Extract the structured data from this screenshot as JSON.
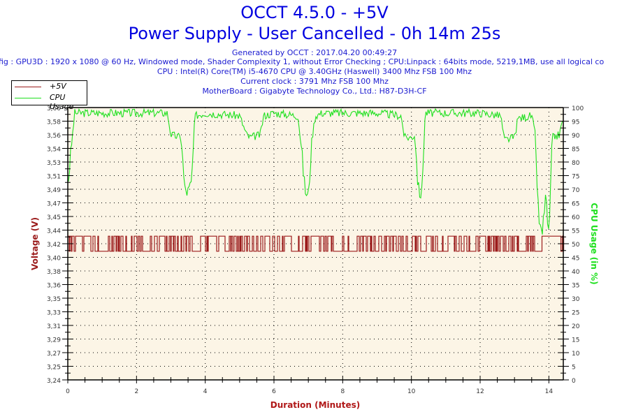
{
  "header": {
    "title": "OCCT 4.5.0 - +5V",
    "subtitle": "Power Supply - User Cancelled - 0h 14m 25s",
    "generated": "Generated by OCCT : 2017.04.20 00:49:27",
    "config": "fig : GPU3D : 1920 x 1080 @ 60 Hz, Windowed mode, Shader Complexity 1, without Error Checking ; CPU:Linpack : 64bits mode, 5219,1MB, use all logical co",
    "cpu": "CPU : Intel(R) Core(TM) i5-4670 CPU @ 3.40GHz (Haswell) 3400 Mhz FSB 100 Mhz",
    "clock": "Current clock : 3791 Mhz FSB 100 Mhz",
    "motherboard": "MotherBoard : Gigabyte Technology Co., Ltd.: H87-D3H-CF"
  },
  "legend": {
    "items": [
      {
        "label": "+5V",
        "color": "#9b1b1b"
      },
      {
        "label": "CPU Usage",
        "color": "#1ee01e"
      }
    ]
  },
  "colors": {
    "plot_bg": "#fcf5e6",
    "voltage": "#9b1b1b",
    "cpu": "#1ee01e",
    "title": "#0000e0",
    "axis_title_left": "#9b1b1b",
    "axis_title_right": "#1ee01e",
    "axis_title_bottom": "#b01818"
  },
  "chart_data": {
    "type": "line",
    "title": "OCCT 4.5.0 - +5V",
    "subtitle": "Power Supply - User Cancelled - 0h 14m 25s",
    "xlabel": "Duration (Minutes)",
    "ylabel": "Voltage (V)",
    "y2label": "CPU Usage (in %)",
    "xlim": [
      0,
      14.42
    ],
    "ylim": [
      3.24,
      3.6
    ],
    "y2lim": [
      0,
      100
    ],
    "x_ticks": [
      "0",
      "2",
      "4",
      "6",
      "8",
      "10",
      "12",
      "14"
    ],
    "y_ticks": [
      "3,60",
      "3,58",
      "3,56",
      "3,54",
      "3,53",
      "3,51",
      "3,49",
      "3,47",
      "3,45",
      "3,44",
      "3,42",
      "3,40",
      "3,38",
      "3,36",
      "3,35",
      "3,33",
      "3,31",
      "3,29",
      "3,27",
      "3,25",
      "3,24"
    ],
    "y2_ticks": [
      "100",
      "95",
      "90",
      "85",
      "80",
      "75",
      "70",
      "65",
      "60",
      "55",
      "50",
      "45",
      "40",
      "35",
      "30",
      "25",
      "20",
      "15",
      "10",
      "5",
      "0"
    ],
    "grid": true,
    "legend_position": "top-left",
    "series": [
      {
        "name": "+5V",
        "axis": "left",
        "description": "Toggles between 3.43 V and 3.41 V for most of the run; steady 3.43 V from ~13.8 to ~14.4 min",
        "x": [
          0.0,
          0.5,
          1.0,
          1.5,
          2.0,
          2.5,
          3.0,
          3.5,
          4.0,
          4.5,
          5.0,
          5.5,
          6.0,
          6.5,
          7.0,
          7.5,
          8.0,
          8.5,
          9.0,
          9.5,
          10.0,
          10.5,
          11.0,
          11.5,
          12.0,
          12.5,
          13.0,
          13.5,
          13.8,
          14.2,
          14.4
        ],
        "values": [
          3.43,
          3.42,
          3.42,
          3.42,
          3.42,
          3.42,
          3.42,
          3.42,
          3.42,
          3.42,
          3.42,
          3.42,
          3.42,
          3.42,
          3.42,
          3.42,
          3.42,
          3.42,
          3.42,
          3.42,
          3.42,
          3.42,
          3.42,
          3.42,
          3.42,
          3.42,
          3.42,
          3.42,
          3.43,
          3.43,
          3.42
        ],
        "range": [
          3.41,
          3.43
        ]
      },
      {
        "name": "CPU Usage",
        "axis": "right",
        "unit": "%",
        "x": [
          0.0,
          0.1,
          0.2,
          1.0,
          2.0,
          2.9,
          3.0,
          3.3,
          3.4,
          3.5,
          3.6,
          3.7,
          4.0,
          5.0,
          5.2,
          5.3,
          5.6,
          5.7,
          6.0,
          6.7,
          6.8,
          6.9,
          7.0,
          7.1,
          7.2,
          7.4,
          8.0,
          9.0,
          9.7,
          9.8,
          10.0,
          10.1,
          10.2,
          10.3,
          10.4,
          11.0,
          12.0,
          12.6,
          12.7,
          13.0,
          13.1,
          13.5,
          13.6,
          13.7,
          13.8,
          13.9,
          14.0,
          14.1,
          14.3,
          14.4
        ],
        "values": [
          71,
          85,
          98,
          98,
          98,
          98,
          90,
          89,
          70,
          69,
          72,
          97,
          98,
          97,
          90,
          89,
          90,
          97,
          98,
          97,
          85,
          70,
          67,
          88,
          97,
          98,
          98,
          98,
          97,
          89,
          89,
          90,
          70,
          68,
          98,
          98,
          98,
          97,
          88,
          89,
          96,
          97,
          90,
          60,
          52,
          68,
          52,
          89,
          90,
          95
        ]
      }
    ]
  }
}
